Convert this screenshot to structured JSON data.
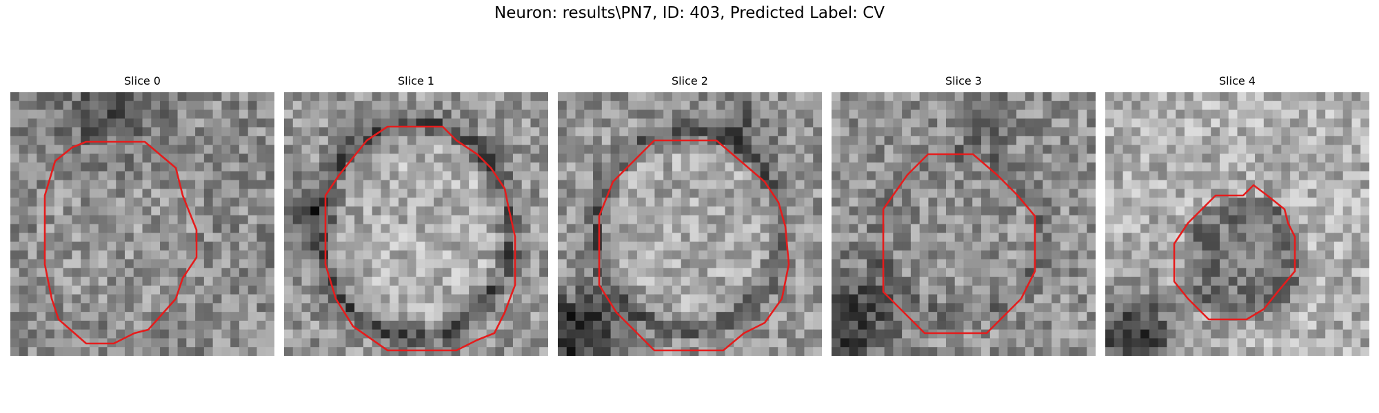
{
  "figure": {
    "title": "Neuron: results\\PN7, ID: 403, Predicted Label: CV"
  },
  "colors": {
    "contour": "#e51c1c",
    "background": "#ffffff"
  },
  "panels": [
    {
      "title": "Slice 0",
      "image": "grayscale-em-patch",
      "contour": "red-cell-outline"
    },
    {
      "title": "Slice 1",
      "image": "grayscale-em-patch",
      "contour": "red-cell-outline"
    },
    {
      "title": "Slice 2",
      "image": "grayscale-em-patch",
      "contour": "red-cell-outline"
    },
    {
      "title": "Slice 3",
      "image": "grayscale-em-patch",
      "contour": "red-cell-outline"
    },
    {
      "title": "Slice 4",
      "image": "grayscale-em-patch",
      "contour": "red-cell-outline"
    }
  ]
}
